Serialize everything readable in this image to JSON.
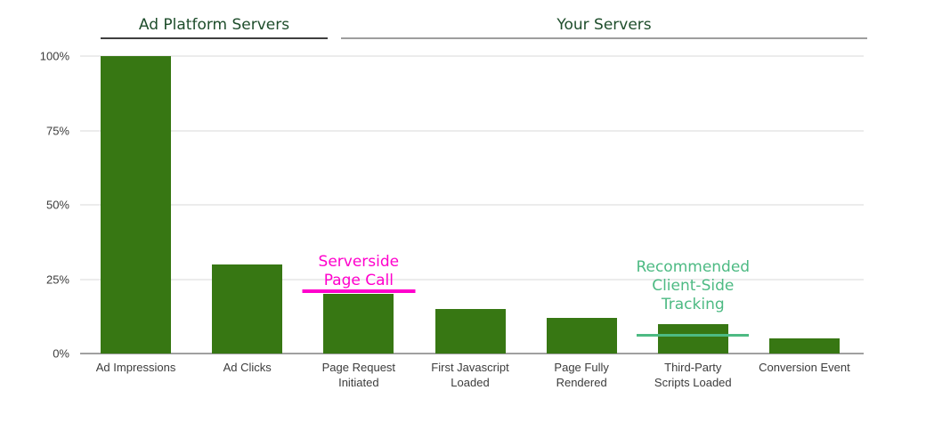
{
  "chart_data": {
    "type": "bar",
    "title": "",
    "xlabel": "",
    "ylabel": "",
    "categories": [
      "Ad Impressions",
      "Ad Clicks",
      "Page Request Initiated",
      "First Javascript Loaded",
      "Page Fully Rendered",
      "Third-Party Scripts Loaded",
      "Conversion Event"
    ],
    "category_label_lines": [
      [
        "Ad Impressions"
      ],
      [
        "Ad Clicks"
      ],
      [
        "Page Request",
        "Initiated"
      ],
      [
        "First Javascript",
        "Loaded"
      ],
      [
        "Page Fully",
        "Rendered"
      ],
      [
        "Third-Party",
        "Scripts Loaded"
      ],
      [
        "Conversion Event"
      ]
    ],
    "values": [
      100,
      30,
      20,
      15,
      12,
      10,
      5
    ],
    "ylim": [
      0,
      100
    ],
    "y_ticks": [
      0,
      25,
      50,
      75,
      100
    ],
    "y_tick_labels": [
      "0%",
      "25%",
      "50%",
      "75%",
      "100%"
    ],
    "grid": true,
    "legend": "none",
    "bar_color": "#377713",
    "gridline_color": "#ececec",
    "baseline_color": "#a0a0a0",
    "tick_label_color": "#3c3c3c",
    "group_headers": [
      {
        "label": "Ad Platform Servers",
        "span_categories": [
          0,
          1
        ],
        "text_color": "#1e4d2b",
        "underline_color": "#3f3f3f"
      },
      {
        "label": "Your Servers",
        "span_categories": [
          2,
          6
        ],
        "text_color": "#1e4d2b",
        "underline_color": "#9e9e9e"
      }
    ],
    "annotations": [
      {
        "lines": [
          "Serverside",
          "Page Call"
        ],
        "text": "Serverside Page Call",
        "color": "#ff00cc",
        "line_value": 21,
        "category_index": 2
      },
      {
        "lines": [
          "Recommended",
          "Client-Side",
          "Tracking"
        ],
        "text": "Recommended Client-Side Tracking",
        "color": "#4dba83",
        "line_value": 6,
        "category_index": 5
      }
    ]
  }
}
